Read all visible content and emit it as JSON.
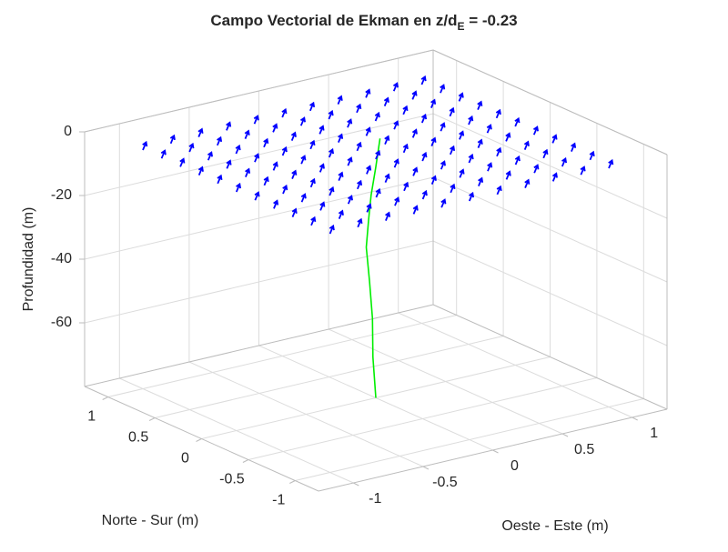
{
  "chart_data": {
    "type": "quiver3",
    "title": {
      "text": "Campo Vectorial de Ekman en z/d",
      "subscript": "E",
      "suffix": " = -0.23"
    },
    "xlabel": "Oeste - Este (m)",
    "ylabel": "Norte - Sur (m)",
    "zlabel": "Profundidad (m)",
    "xlim": [
      -1.25,
      1.25
    ],
    "ylim": [
      -1.25,
      1.25
    ],
    "zlim": [
      -80,
      0
    ],
    "xticks": [
      -1,
      -0.5,
      0,
      0.5,
      1
    ],
    "yticks": [
      -1,
      -0.5,
      0,
      0.5,
      1
    ],
    "zticks": [
      -60,
      -40,
      -20,
      0
    ],
    "grid": true,
    "vectors": {
      "color": "#0000ff",
      "x": [
        -1,
        -0.8,
        -0.6,
        -0.4,
        -0.2,
        0,
        0.2,
        0.4,
        0.6,
        0.8,
        1
      ],
      "y": [
        -1,
        -0.8,
        -0.6,
        -0.4,
        -0.2,
        0,
        0.2,
        0.4,
        0.6,
        0.8,
        1
      ],
      "z": -5,
      "u": 0.03,
      "v": 0.01,
      "w": 2
    },
    "profile": {
      "color": "#00ee00",
      "x": [
        0,
        0.08,
        0.15,
        0.19,
        0.2,
        0.17,
        0.1,
        0.08,
        0.07
      ],
      "y": [
        0,
        0.15,
        0.26,
        0.35,
        0.4,
        0.33,
        0.2,
        0.12,
        0.06
      ],
      "z": [
        -80,
        -70,
        -60,
        -50,
        -40,
        -30,
        -20,
        -10,
        0
      ]
    }
  }
}
